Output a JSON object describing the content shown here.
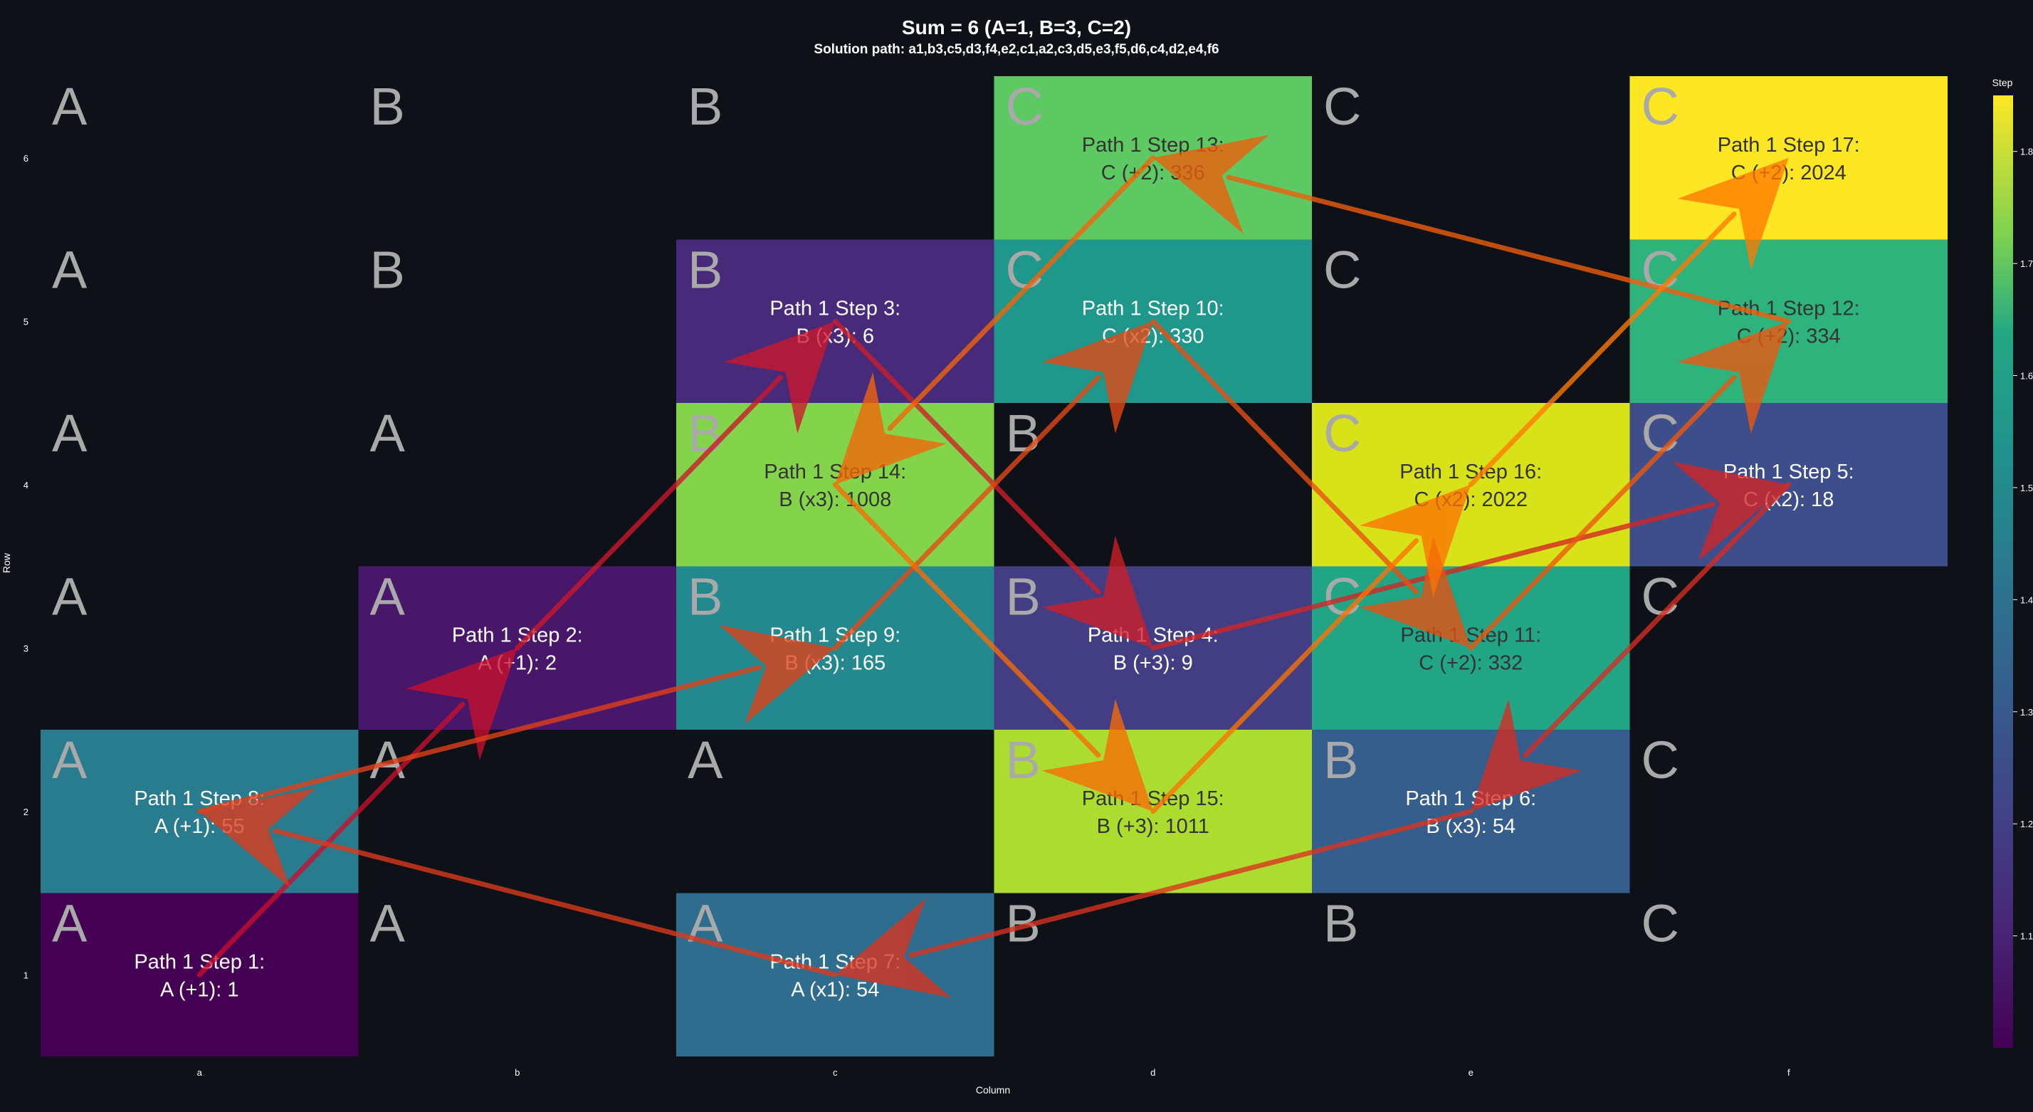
{
  "chart_data": {
    "type": "heatmap",
    "title": "Sum = 6 (A=1, B=3, C=2)",
    "subtitle": "Solution path: a1,b3,c5,d3,f4,e2,c1,a2,c3,d5,e3,f5,d6,c4,d2,e4,f6",
    "xlabel": "Column",
    "ylabel": "Row",
    "x_ticks": [
      "a",
      "b",
      "c",
      "d",
      "e",
      "f"
    ],
    "y_ticks": [
      "1",
      "2",
      "3",
      "4",
      "5",
      "6"
    ],
    "colorbar": {
      "label": "Step",
      "ticks": [
        "1.1",
        "1.2",
        "1.3",
        "1.4",
        "1.5",
        "1.6",
        "1.7",
        "1.8"
      ],
      "range": [
        1.0,
        1.85
      ]
    },
    "grid_letters": [
      [
        "A",
        "A",
        "A",
        "B",
        "B",
        "C"
      ],
      [
        "A",
        "A",
        "A",
        "B",
        "B",
        "C"
      ],
      [
        "A",
        "A",
        "B",
        "B",
        "C",
        "C"
      ],
      [
        "A",
        "A",
        "B",
        "B",
        "C",
        "C"
      ],
      [
        "A",
        "B",
        "B",
        "C",
        "C",
        "C"
      ],
      [
        "A",
        "B",
        "B",
        "C",
        "C",
        "C"
      ]
    ],
    "steps": [
      {
        "step": 1,
        "cell": "a1",
        "label1": "Path 1 Step 1:",
        "label2": "A (+1): 1",
        "value": 1,
        "color": "#440154",
        "text": "light"
      },
      {
        "step": 2,
        "cell": "b3",
        "label1": "Path 1 Step 2:",
        "label2": "A (+1): 2",
        "value": 2,
        "color": "#481769",
        "text": "light"
      },
      {
        "step": 3,
        "cell": "c5",
        "label1": "Path 1 Step 3:",
        "label2": "B (x3): 6",
        "value": 6,
        "color": "#472a7a",
        "text": "light"
      },
      {
        "step": 4,
        "cell": "d3",
        "label1": "Path 1 Step 4:",
        "label2": "B (+3): 9",
        "value": 9,
        "color": "#433d84",
        "text": "light"
      },
      {
        "step": 5,
        "cell": "f4",
        "label1": "Path 1 Step 5:",
        "label2": "C (x2): 18",
        "value": 18,
        "color": "#3d4e8a",
        "text": "light"
      },
      {
        "step": 6,
        "cell": "e2",
        "label1": "Path 1 Step 6:",
        "label2": "B (x3): 54",
        "value": 54,
        "color": "#355e8d",
        "text": "light"
      },
      {
        "step": 7,
        "cell": "c1",
        "label1": "Path 1 Step 7:",
        "label2": "A (x1): 54",
        "value": 54,
        "color": "#2e6d8e",
        "text": "light"
      },
      {
        "step": 8,
        "cell": "a2",
        "label1": "Path 1 Step 8:",
        "label2": "A (+1): 55",
        "value": 55,
        "color": "#297b8e",
        "text": "light"
      },
      {
        "step": 9,
        "cell": "c3",
        "label1": "Path 1 Step 9:",
        "label2": "B (x3): 165",
        "value": 165,
        "color": "#23898e",
        "text": "light"
      },
      {
        "step": 10,
        "cell": "d5",
        "label1": "Path 1 Step 10:",
        "label2": "C (x2): 330",
        "value": 330,
        "color": "#1f978b",
        "text": "light"
      },
      {
        "step": 11,
        "cell": "e3",
        "label1": "Path 1 Step 11:",
        "label2": "C (+2): 332",
        "value": 332,
        "color": "#21a585",
        "text": "dark"
      },
      {
        "step": 12,
        "cell": "f5",
        "label1": "Path 1 Step 12:",
        "label2": "C (+2): 334",
        "value": 334,
        "color": "#2eb37c",
        "text": "dark"
      },
      {
        "step": 13,
        "cell": "d6",
        "label1": "Path 1 Step 13:",
        "label2": "C (+2): 336",
        "value": 336,
        "color": "#5ec962",
        "text": "dark"
      },
      {
        "step": 14,
        "cell": "c4",
        "label1": "Path 1 Step 14:",
        "label2": "B (x3): 1008",
        "value": 1008,
        "color": "#84d44b",
        "text": "dark"
      },
      {
        "step": 15,
        "cell": "d2",
        "label1": "Path 1 Step 15:",
        "label2": "B (+3): 1011",
        "value": 1011,
        "color": "#addc30",
        "text": "dark"
      },
      {
        "step": 16,
        "cell": "e4",
        "label1": "Path 1 Step 16:",
        "label2": "C (x2): 2022",
        "value": 2022,
        "color": "#d8e219",
        "text": "dark"
      },
      {
        "step": 17,
        "cell": "f6",
        "label1": "Path 1 Step 17:",
        "label2": "C (+2): 2024",
        "value": 2024,
        "color": "#fde725",
        "text": "dark"
      }
    ],
    "colors": {
      "background": "#0e1117",
      "grid_letter": "#a9a9a9",
      "arrow_early": "#c8102e",
      "arrow_late": "#ff7a00"
    }
  }
}
